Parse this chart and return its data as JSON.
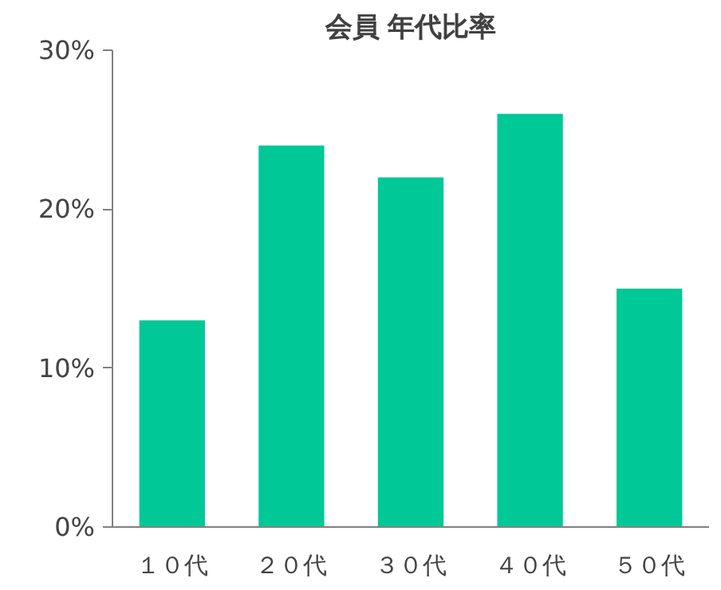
{
  "chart_data": {
    "type": "bar",
    "title": "会員 年代比率",
    "categories": [
      "１０代",
      "２０代",
      "３０代",
      "４０代",
      "５０代"
    ],
    "values": [
      13,
      24,
      22,
      26,
      15
    ],
    "color": "#00c896",
    "ylim": [
      0,
      30
    ],
    "yticks": [
      {
        "value": 0,
        "label": "0%"
      },
      {
        "value": 10,
        "label": "10%"
      },
      {
        "value": 20,
        "label": "20%"
      },
      {
        "value": 30,
        "label": "30%"
      }
    ],
    "grid": false
  }
}
